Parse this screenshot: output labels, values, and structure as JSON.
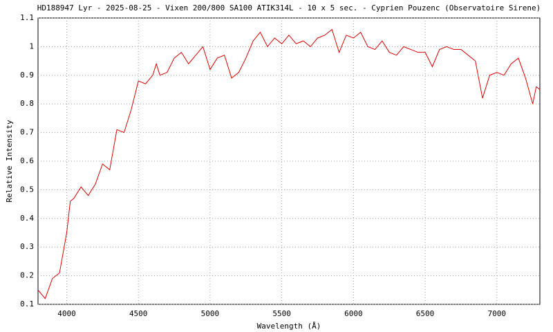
{
  "chart_data": {
    "type": "line",
    "title": "HD188947 Lyr - 2025-08-25 - Vixen 200/800 SA100 ATIK314L - 10 x 5 sec. - Cyprien Pouzenc (Observatoire Sirene)",
    "x_label": "Wavelength (Å)",
    "y_label": "Relative Intensity",
    "x": [
      3800,
      3850,
      3900,
      3950,
      4000,
      4025,
      4050,
      4100,
      4150,
      4200,
      4250,
      4300,
      4350,
      4400,
      4450,
      4500,
      4550,
      4600,
      4625,
      4650,
      4700,
      4750,
      4800,
      4850,
      4900,
      4950,
      5000,
      5050,
      5100,
      5150,
      5200,
      5250,
      5300,
      5350,
      5400,
      5450,
      5500,
      5550,
      5600,
      5650,
      5700,
      5750,
      5800,
      5850,
      5900,
      5950,
      6000,
      6050,
      6100,
      6150,
      6200,
      6250,
      6300,
      6350,
      6400,
      6450,
      6500,
      6550,
      6600,
      6650,
      6700,
      6750,
      6800,
      6850,
      6900,
      6950,
      7000,
      7050,
      7100,
      7150,
      7200,
      7250,
      7275,
      7300
    ],
    "series": [
      {
        "name": "HD188947",
        "color": "#e00000",
        "values": [
          0.15,
          0.12,
          0.19,
          0.21,
          0.35,
          0.46,
          0.47,
          0.51,
          0.48,
          0.52,
          0.59,
          0.57,
          0.71,
          0.7,
          0.78,
          0.88,
          0.87,
          0.9,
          0.94,
          0.9,
          0.91,
          0.96,
          0.98,
          0.94,
          0.97,
          1.0,
          0.92,
          0.96,
          0.97,
          0.89,
          0.91,
          0.96,
          1.02,
          1.05,
          1.0,
          1.03,
          1.01,
          1.04,
          1.01,
          1.02,
          1.0,
          1.03,
          1.04,
          1.06,
          0.98,
          1.04,
          1.03,
          1.05,
          1.0,
          0.99,
          1.02,
          0.98,
          0.97,
          1.0,
          0.99,
          0.98,
          0.98,
          0.93,
          0.99,
          1.0,
          0.99,
          0.99,
          0.97,
          0.95,
          0.82,
          0.9,
          0.91,
          0.9,
          0.94,
          0.96,
          0.89,
          0.8,
          0.86,
          0.85
        ]
      }
    ],
    "xlim": [
      3800,
      7300
    ],
    "xticks": [
      4000,
      4500,
      5000,
      5500,
      6000,
      6500,
      7000
    ],
    "ylim": [
      0.1,
      1.1
    ],
    "yticks": [
      0.1,
      0.2,
      0.3,
      0.4,
      0.5,
      0.6,
      0.7,
      0.8,
      0.9,
      1,
      1.1
    ],
    "grid": true
  }
}
